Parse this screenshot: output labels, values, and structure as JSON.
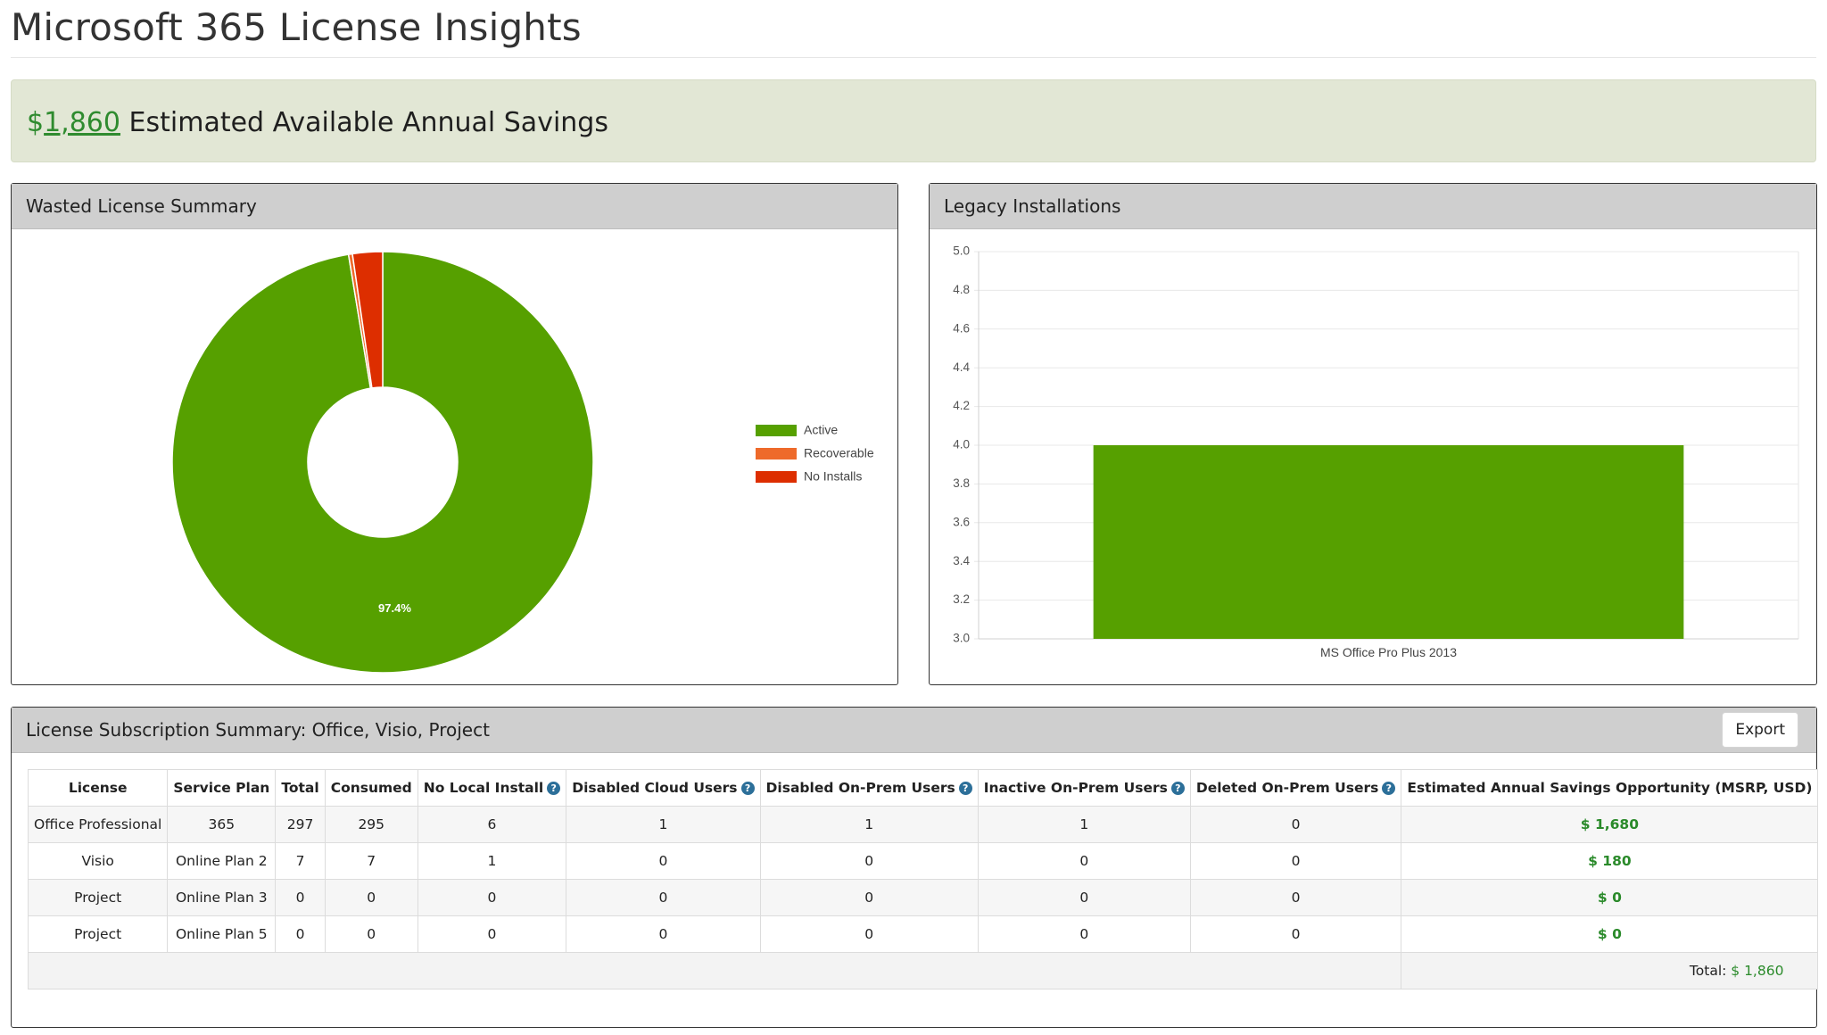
{
  "page": {
    "title": "Microsoft 365 License Insights"
  },
  "savings_banner": {
    "currency": "$",
    "amount": "1,860",
    "label": "Estimated Available Annual Savings"
  },
  "panels": {
    "wasted": {
      "title": "Wasted License Summary"
    },
    "legacy": {
      "title": "Legacy Installations"
    },
    "subscriptions": {
      "title": "License Subscription Summary: Office, Visio, Project",
      "export_label": "Export"
    }
  },
  "colors": {
    "active": "#56a000",
    "recoverable": "#ee6a2a",
    "no_installs": "#dd2e00",
    "money": "#2a8a2a",
    "banner_bg": "#e2e7d5",
    "help_icon": "#2c6f99"
  },
  "chart_data": [
    {
      "type": "pie",
      "donut": true,
      "title": "Wasted License Summary",
      "legend_position": "right",
      "slices": [
        {
          "label": "Active",
          "value": 97.4,
          "color": "#56a000",
          "data_label": "97.4%"
        },
        {
          "label": "Recoverable",
          "value": 0.3,
          "color": "#ee6a2a"
        },
        {
          "label": "No Installs",
          "value": 2.3,
          "color": "#dd2e00"
        }
      ]
    },
    {
      "type": "bar",
      "title": "Legacy Installations",
      "categories": [
        "MS Office Pro Plus 2013"
      ],
      "values": [
        4.0
      ],
      "color": "#56a000",
      "ylim": [
        3.0,
        5.0
      ],
      "yticks": [
        "3.0",
        "3.2",
        "3.4",
        "3.6",
        "3.8",
        "4.0",
        "4.2",
        "4.4",
        "4.6",
        "4.8",
        "5.0"
      ],
      "grid": true,
      "xlabel": "",
      "ylabel": ""
    }
  ],
  "table": {
    "columns": [
      {
        "label": "License",
        "help": false
      },
      {
        "label": "Service Plan",
        "help": false
      },
      {
        "label": "Total",
        "help": false
      },
      {
        "label": "Consumed",
        "help": false
      },
      {
        "label": "No Local Install",
        "help": true
      },
      {
        "label": "Disabled Cloud Users",
        "help": true
      },
      {
        "label": "Disabled On-Prem Users",
        "help": true
      },
      {
        "label": "Inactive On-Prem Users",
        "help": true
      },
      {
        "label": "Deleted On-Prem Users",
        "help": true
      },
      {
        "label": "Estimated Annual Savings Opportunity (MSRP, USD)",
        "help": false
      }
    ],
    "rows": [
      [
        "Office Professional",
        "365",
        "297",
        "295",
        "6",
        "1",
        "1",
        "1",
        "0",
        "$ 1,680"
      ],
      [
        "Visio",
        "Online Plan 2",
        "7",
        "7",
        "1",
        "0",
        "0",
        "0",
        "0",
        "$ 180"
      ],
      [
        "Project",
        "Online Plan 3",
        "0",
        "0",
        "0",
        "0",
        "0",
        "0",
        "0",
        "$ 0"
      ],
      [
        "Project",
        "Online Plan 5",
        "0",
        "0",
        "0",
        "0",
        "0",
        "0",
        "0",
        "$ 0"
      ]
    ],
    "total_label": "Total:",
    "total_value": "$ 1,860"
  },
  "icons": {
    "help": "question-circle-icon"
  }
}
